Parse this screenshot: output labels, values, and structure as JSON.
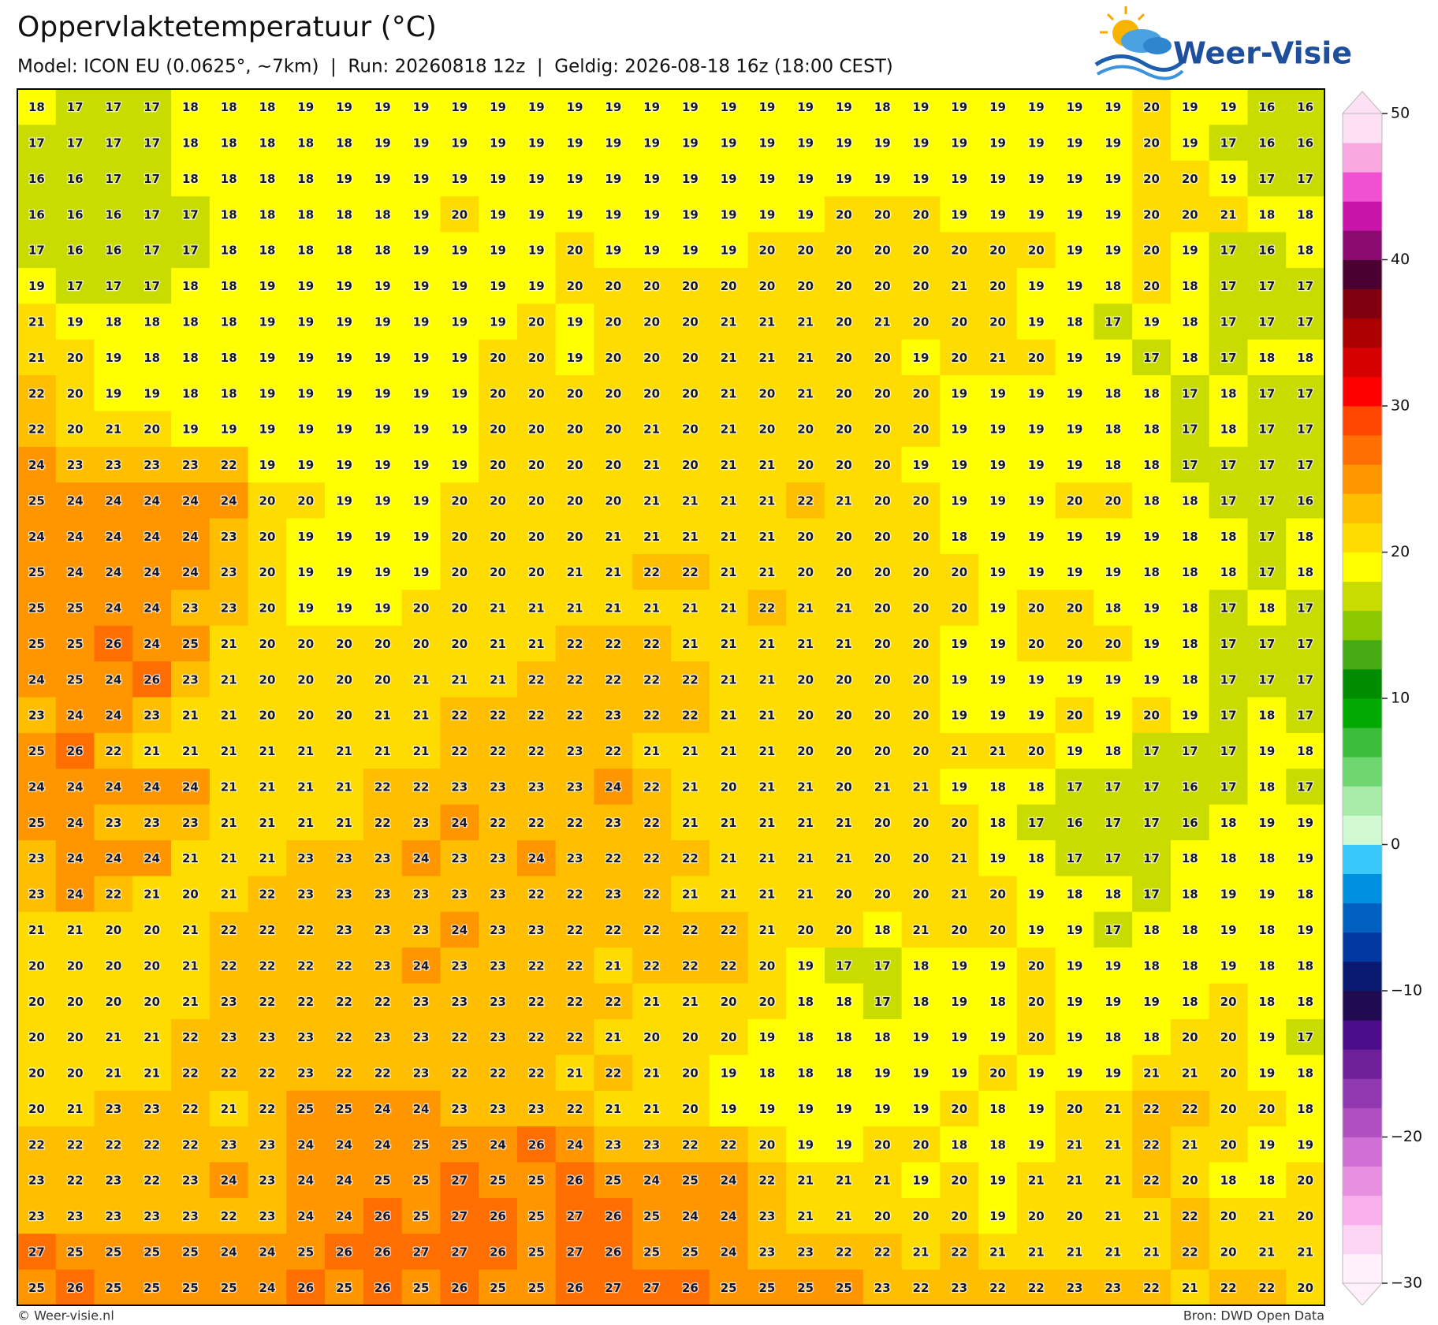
{
  "chart_data": {
    "type": "map",
    "title": "Oppervlaktetemperatuur (°C)",
    "subtitle": "Model: ICON EU (0.0625°, ~7km)  |  Run: 20260818 12z  |  Geldig: 2026-08-18 16z (18:00 CEST)",
    "brand": "Weer-Visie",
    "footer_left": "© Weer-visie.nl",
    "footer_right": "Bron: DWD Open Data",
    "values": [
      [
        18,
        17,
        17,
        17,
        18,
        18,
        18,
        19,
        19,
        19,
        19,
        19,
        19,
        19,
        19,
        19,
        19,
        19,
        19,
        19,
        19,
        19,
        18,
        19,
        19,
        19,
        19,
        19,
        19,
        20,
        19,
        19,
        16,
        16
      ],
      [
        17,
        17,
        17,
        17,
        18,
        18,
        18,
        18,
        18,
        19,
        19,
        19,
        19,
        19,
        19,
        19,
        19,
        19,
        19,
        19,
        19,
        19,
        19,
        19,
        19,
        19,
        19,
        19,
        19,
        20,
        19,
        17,
        16,
        16
      ],
      [
        16,
        16,
        17,
        17,
        18,
        18,
        18,
        18,
        19,
        19,
        19,
        19,
        19,
        19,
        19,
        19,
        19,
        19,
        19,
        19,
        19,
        19,
        19,
        19,
        19,
        19,
        19,
        19,
        19,
        20,
        20,
        19,
        17,
        17
      ],
      [
        16,
        16,
        16,
        17,
        17,
        18,
        18,
        18,
        18,
        18,
        19,
        20,
        19,
        19,
        19,
        19,
        19,
        19,
        19,
        19,
        19,
        20,
        20,
        20,
        19,
        19,
        19,
        19,
        19,
        20,
        20,
        21,
        18,
        18
      ],
      [
        17,
        16,
        16,
        17,
        17,
        18,
        18,
        18,
        18,
        18,
        19,
        19,
        19,
        19,
        20,
        19,
        19,
        19,
        19,
        20,
        20,
        20,
        20,
        20,
        20,
        20,
        20,
        19,
        19,
        20,
        19,
        17,
        16,
        18
      ],
      [
        19,
        17,
        17,
        17,
        18,
        18,
        19,
        19,
        19,
        19,
        19,
        19,
        19,
        19,
        20,
        20,
        20,
        20,
        20,
        20,
        20,
        20,
        20,
        20,
        21,
        20,
        19,
        19,
        18,
        20,
        18,
        17,
        17,
        17
      ],
      [
        21,
        19,
        18,
        18,
        18,
        18,
        19,
        19,
        19,
        19,
        19,
        19,
        19,
        20,
        19,
        20,
        20,
        20,
        21,
        21,
        21,
        20,
        21,
        20,
        20,
        20,
        19,
        18,
        17,
        19,
        18,
        17,
        17,
        17
      ],
      [
        21,
        20,
        19,
        18,
        18,
        18,
        19,
        19,
        19,
        19,
        19,
        19,
        20,
        20,
        19,
        20,
        20,
        20,
        21,
        21,
        21,
        20,
        20,
        19,
        20,
        21,
        20,
        19,
        19,
        17,
        18,
        17,
        18,
        18
      ],
      [
        22,
        20,
        19,
        19,
        18,
        18,
        19,
        19,
        19,
        19,
        19,
        19,
        20,
        20,
        20,
        20,
        20,
        20,
        21,
        20,
        21,
        20,
        20,
        20,
        19,
        19,
        19,
        19,
        18,
        18,
        17,
        18,
        17,
        17
      ],
      [
        22,
        20,
        21,
        20,
        19,
        19,
        19,
        19,
        19,
        19,
        19,
        19,
        20,
        20,
        20,
        20,
        21,
        20,
        21,
        20,
        20,
        20,
        20,
        20,
        19,
        19,
        19,
        19,
        18,
        18,
        17,
        18,
        17,
        17
      ],
      [
        24,
        23,
        23,
        23,
        23,
        22,
        19,
        19,
        19,
        19,
        19,
        19,
        20,
        20,
        20,
        20,
        21,
        20,
        21,
        21,
        20,
        20,
        20,
        19,
        19,
        19,
        19,
        19,
        18,
        18,
        17,
        17,
        17,
        17
      ],
      [
        25,
        24,
        24,
        24,
        24,
        24,
        20,
        20,
        19,
        19,
        19,
        20,
        20,
        20,
        20,
        20,
        21,
        21,
        21,
        21,
        22,
        21,
        20,
        20,
        19,
        19,
        19,
        20,
        20,
        18,
        18,
        17,
        17,
        16
      ],
      [
        24,
        24,
        24,
        24,
        24,
        23,
        20,
        19,
        19,
        19,
        19,
        20,
        20,
        20,
        20,
        21,
        21,
        21,
        21,
        21,
        20,
        20,
        20,
        20,
        18,
        19,
        19,
        19,
        19,
        19,
        18,
        18,
        17,
        18
      ],
      [
        25,
        24,
        24,
        24,
        24,
        23,
        20,
        19,
        19,
        19,
        19,
        20,
        20,
        20,
        21,
        21,
        22,
        22,
        21,
        21,
        20,
        20,
        20,
        20,
        20,
        19,
        19,
        19,
        19,
        18,
        18,
        18,
        17,
        18
      ],
      [
        25,
        25,
        24,
        24,
        23,
        23,
        20,
        19,
        19,
        19,
        20,
        20,
        21,
        21,
        21,
        21,
        21,
        21,
        21,
        22,
        21,
        21,
        20,
        20,
        20,
        19,
        20,
        20,
        18,
        19,
        18,
        17,
        18,
        17
      ],
      [
        25,
        25,
        26,
        24,
        25,
        21,
        20,
        20,
        20,
        20,
        20,
        20,
        21,
        21,
        22,
        22,
        22,
        21,
        21,
        21,
        21,
        21,
        20,
        20,
        19,
        19,
        20,
        20,
        20,
        19,
        18,
        17,
        17,
        17
      ],
      [
        24,
        25,
        24,
        26,
        23,
        21,
        20,
        20,
        20,
        20,
        21,
        21,
        21,
        22,
        22,
        22,
        22,
        22,
        21,
        21,
        20,
        20,
        20,
        20,
        19,
        19,
        19,
        19,
        19,
        19,
        18,
        17,
        17,
        17
      ],
      [
        23,
        24,
        24,
        23,
        21,
        21,
        20,
        20,
        20,
        21,
        21,
        22,
        22,
        22,
        22,
        23,
        22,
        22,
        21,
        21,
        20,
        20,
        20,
        20,
        19,
        19,
        19,
        20,
        19,
        20,
        19,
        17,
        18,
        17
      ],
      [
        25,
        26,
        22,
        21,
        21,
        21,
        21,
        21,
        21,
        21,
        21,
        22,
        22,
        22,
        23,
        22,
        21,
        21,
        21,
        21,
        20,
        20,
        20,
        20,
        21,
        21,
        20,
        19,
        18,
        17,
        17,
        17,
        19,
        18
      ],
      [
        24,
        24,
        24,
        24,
        24,
        21,
        21,
        21,
        21,
        22,
        22,
        23,
        23,
        23,
        23,
        24,
        22,
        21,
        20,
        21,
        21,
        20,
        21,
        21,
        19,
        18,
        18,
        17,
        17,
        17,
        16,
        17,
        18,
        17
      ],
      [
        25,
        24,
        23,
        23,
        23,
        21,
        21,
        21,
        21,
        22,
        23,
        24,
        22,
        22,
        22,
        23,
        22,
        21,
        21,
        21,
        21,
        21,
        20,
        20,
        20,
        18,
        17,
        16,
        17,
        17,
        16,
        18,
        19,
        19
      ],
      [
        23,
        24,
        24,
        24,
        21,
        21,
        21,
        23,
        23,
        23,
        24,
        23,
        23,
        24,
        23,
        22,
        22,
        22,
        21,
        21,
        21,
        21,
        20,
        20,
        21,
        19,
        18,
        17,
        17,
        17,
        18,
        18,
        18,
        19
      ],
      [
        23,
        24,
        22,
        21,
        20,
        21,
        22,
        23,
        23,
        23,
        23,
        23,
        23,
        22,
        22,
        23,
        22,
        21,
        21,
        21,
        21,
        20,
        20,
        20,
        21,
        20,
        19,
        18,
        18,
        17,
        18,
        19,
        19,
        18
      ],
      [
        21,
        21,
        20,
        20,
        21,
        22,
        22,
        22,
        23,
        23,
        23,
        24,
        23,
        23,
        22,
        22,
        22,
        22,
        22,
        21,
        20,
        20,
        18,
        21,
        20,
        20,
        19,
        19,
        17,
        18,
        18,
        19,
        18,
        19
      ],
      [
        20,
        20,
        20,
        20,
        21,
        22,
        22,
        22,
        22,
        23,
        24,
        23,
        23,
        22,
        22,
        21,
        22,
        22,
        22,
        20,
        19,
        17,
        17,
        18,
        19,
        19,
        20,
        19,
        19,
        18,
        18,
        19,
        18,
        18
      ],
      [
        20,
        20,
        20,
        20,
        21,
        23,
        22,
        22,
        22,
        22,
        23,
        23,
        23,
        22,
        22,
        22,
        21,
        21,
        20,
        20,
        18,
        18,
        17,
        18,
        19,
        18,
        20,
        19,
        19,
        19,
        18,
        20,
        18,
        18
      ],
      [
        20,
        20,
        21,
        21,
        22,
        23,
        23,
        23,
        22,
        23,
        23,
        22,
        23,
        22,
        22,
        21,
        20,
        20,
        20,
        19,
        18,
        18,
        18,
        19,
        19,
        19,
        20,
        19,
        18,
        18,
        20,
        20,
        19,
        17
      ],
      [
        20,
        20,
        21,
        21,
        22,
        22,
        22,
        23,
        22,
        22,
        23,
        22,
        22,
        22,
        21,
        22,
        21,
        20,
        19,
        18,
        18,
        18,
        19,
        19,
        19,
        20,
        19,
        19,
        19,
        21,
        21,
        20,
        19,
        18
      ],
      [
        20,
        21,
        23,
        23,
        22,
        21,
        22,
        25,
        25,
        24,
        24,
        23,
        23,
        23,
        22,
        21,
        21,
        20,
        19,
        19,
        19,
        19,
        19,
        19,
        20,
        18,
        19,
        20,
        21,
        22,
        22,
        20,
        20,
        18
      ],
      [
        22,
        22,
        22,
        22,
        22,
        23,
        23,
        24,
        24,
        24,
        25,
        25,
        24,
        26,
        24,
        23,
        23,
        22,
        22,
        20,
        19,
        19,
        20,
        20,
        18,
        18,
        19,
        21,
        21,
        22,
        21,
        20,
        19,
        19
      ],
      [
        23,
        22,
        23,
        22,
        23,
        24,
        23,
        24,
        24,
        25,
        25,
        27,
        25,
        25,
        26,
        25,
        24,
        25,
        24,
        22,
        21,
        21,
        21,
        19,
        20,
        19,
        21,
        21,
        21,
        22,
        20,
        18,
        18,
        20
      ],
      [
        23,
        23,
        23,
        23,
        23,
        22,
        23,
        24,
        24,
        26,
        25,
        27,
        26,
        25,
        27,
        26,
        25,
        24,
        24,
        23,
        21,
        21,
        20,
        20,
        20,
        19,
        20,
        20,
        21,
        21,
        22,
        20,
        21,
        20
      ],
      [
        27,
        25,
        25,
        25,
        25,
        24,
        24,
        25,
        26,
        26,
        27,
        27,
        26,
        25,
        27,
        26,
        25,
        25,
        24,
        23,
        23,
        22,
        22,
        21,
        22,
        21,
        21,
        21,
        21,
        21,
        22,
        20,
        21,
        21
      ],
      [
        25,
        26,
        25,
        25,
        25,
        25,
        24,
        26,
        25,
        26,
        25,
        26,
        25,
        25,
        26,
        27,
        27,
        26,
        25,
        25,
        25,
        25,
        23,
        22,
        23,
        22,
        22,
        23,
        23,
        22,
        21,
        22,
        22,
        20
      ]
    ],
    "colorbar": {
      "bounds": [
        -30,
        -28,
        -26,
        -24,
        -22,
        -20,
        -18,
        -16,
        -14,
        -12,
        -10,
        -8,
        -6,
        -4,
        -2,
        0,
        2,
        4,
        6,
        8,
        10,
        12,
        14,
        16,
        18,
        20,
        22,
        24,
        26,
        28,
        30,
        32,
        34,
        36,
        38,
        40,
        42,
        44,
        46,
        48,
        50
      ],
      "colors": [
        "#fff0fb",
        "#fcd4f4",
        "#f8b0ec",
        "#e890e0",
        "#d070d4",
        "#b050c0",
        "#9038b0",
        "#6e2098",
        "#4a0c88",
        "#200a50",
        "#0a1a70",
        "#0038a0",
        "#0060c0",
        "#0090e0",
        "#38c8fa",
        "#d2fad2",
        "#a8eba8",
        "#6ed66e",
        "#3cbe3c",
        "#00a800",
        "#008c00",
        "#46aa14",
        "#8cc800",
        "#c8dc00",
        "#ffff00",
        "#ffdc00",
        "#ffbe00",
        "#ff9600",
        "#ff6e00",
        "#ff4600",
        "#ff0000",
        "#d40000",
        "#aa0000",
        "#800010",
        "#4a0030",
        "#8a0a70",
        "#c814a8",
        "#f050d2",
        "#f8a8de",
        "#fde0f4"
      ],
      "ticks": [
        {
          "value": -30,
          "label": "−30"
        },
        {
          "value": -20,
          "label": "−20"
        },
        {
          "value": -10,
          "label": "−10"
        },
        0,
        10,
        20,
        30,
        40,
        50
      ]
    }
  }
}
